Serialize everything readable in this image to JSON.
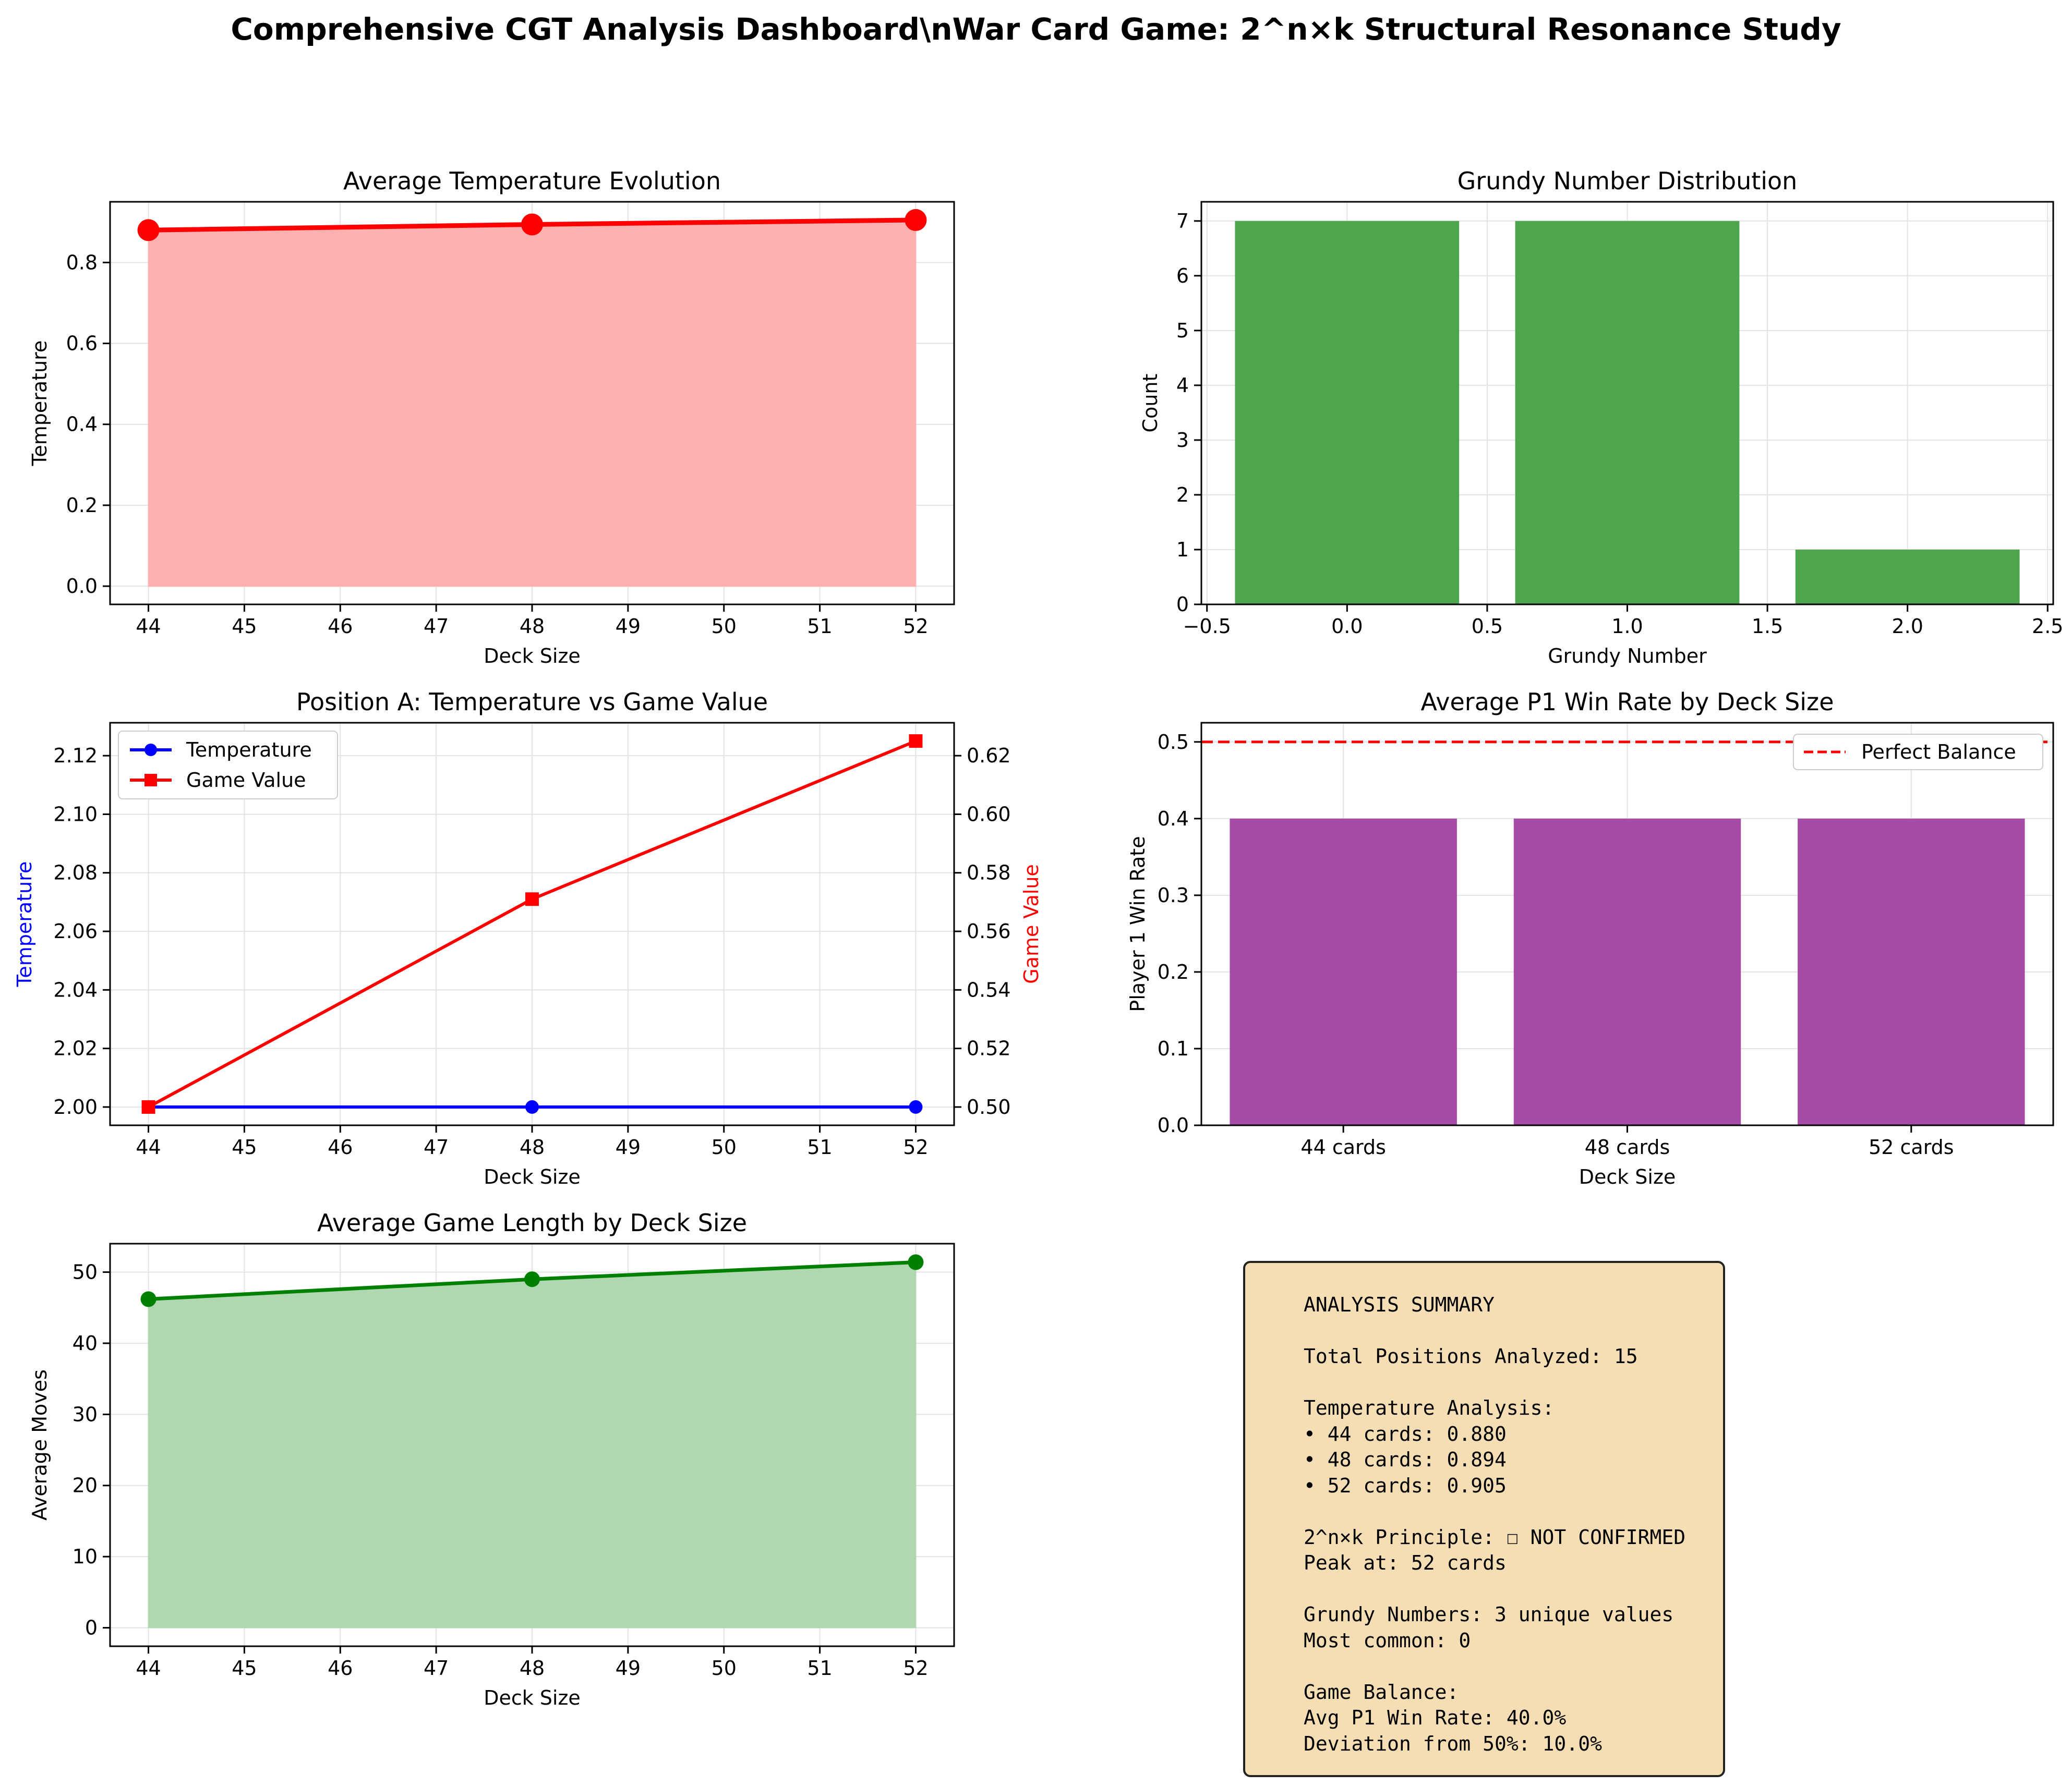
{
  "figure": {
    "title": "Comprehensive CGT Analysis Dashboard\\nWar Card Game: 2^n×k Structural Resonance Study"
  },
  "colors": {
    "red": "#ff0000",
    "red_fill": "#ffb0b0",
    "green_bar": "#4da64d",
    "purple_bar": "#a64ca6",
    "green_line": "#008000",
    "green_fill": "#b0d8b0",
    "blue": "#0000ff",
    "box_fill": "#f5deb3"
  },
  "chart_data": [
    {
      "id": "temp_evolution",
      "type": "area",
      "title": "Average Temperature Evolution",
      "xlabel": "Deck Size",
      "ylabel": "Temperature",
      "x": [
        44,
        48,
        52
      ],
      "values": [
        0.88,
        0.894,
        0.905
      ],
      "xlim": [
        43.6,
        52.4
      ],
      "ylim": [
        -0.045,
        0.95
      ],
      "xticks": [
        "44",
        "45",
        "46",
        "47",
        "48",
        "49",
        "50",
        "51",
        "52"
      ],
      "yticks": [
        "0.0",
        "0.2",
        "0.4",
        "0.6",
        "0.8"
      ],
      "grid": true
    },
    {
      "id": "grundy",
      "type": "bar",
      "title": "Grundy Number Distribution",
      "xlabel": "Grundy Number",
      "ylabel": "Count",
      "x": [
        0,
        1,
        2
      ],
      "values": [
        7,
        7,
        1
      ],
      "bar_width": 0.8,
      "xlim": [
        -0.52,
        2.52
      ],
      "ylim": [
        0,
        7.35
      ],
      "xticks": [
        "−0.5",
        "0.0",
        "0.5",
        "1.0",
        "1.5",
        "2.0",
        "2.5"
      ],
      "yticks": [
        "0",
        "1",
        "2",
        "3",
        "4",
        "5",
        "6",
        "7"
      ],
      "grid": true
    },
    {
      "id": "posA",
      "type": "line",
      "title": "Position A: Temperature vs Game Value",
      "xlabel": "Deck Size",
      "ylabel": "Temperature",
      "ylabel_right": "Game Value",
      "x": [
        44,
        48,
        52
      ],
      "series": [
        {
          "name": "Temperature",
          "axis": "left",
          "values": [
            2.0,
            2.0,
            2.0
          ]
        },
        {
          "name": "Game Value",
          "axis": "right",
          "values": [
            0.5,
            0.571,
            0.625
          ]
        }
      ],
      "xlim": [
        43.6,
        52.4
      ],
      "ylim": [
        1.99375,
        2.13125
      ],
      "ylim_right": [
        0.49375,
        0.63125
      ],
      "xticks": [
        "44",
        "45",
        "46",
        "47",
        "48",
        "49",
        "50",
        "51",
        "52"
      ],
      "yticks": [
        "2.00",
        "2.02",
        "2.04",
        "2.06",
        "2.08",
        "2.10",
        "2.12"
      ],
      "yticks_right": [
        "0.50",
        "0.52",
        "0.54",
        "0.56",
        "0.58",
        "0.60",
        "0.62"
      ],
      "legend": "upper-left",
      "grid": true
    },
    {
      "id": "winrate",
      "type": "bar",
      "title": "Average P1 Win Rate by Deck Size",
      "xlabel": "Deck Size",
      "ylabel": "Player 1 Win Rate",
      "categories": [
        "44 cards",
        "48 cards",
        "52 cards"
      ],
      "values": [
        0.4,
        0.4,
        0.4
      ],
      "reference_line": {
        "name": "Perfect Balance",
        "value": 0.5
      },
      "ylim": [
        0,
        0.525
      ],
      "yticks": [
        "0.0",
        "0.1",
        "0.2",
        "0.3",
        "0.4",
        "0.5"
      ],
      "legend": "upper-right",
      "grid": true
    },
    {
      "id": "length",
      "type": "area",
      "title": "Average Game Length by Deck Size",
      "xlabel": "Deck Size",
      "ylabel": "Average Moves",
      "x": [
        44,
        48,
        52
      ],
      "values": [
        46.2,
        49.0,
        51.4
      ],
      "xlim": [
        43.6,
        52.4
      ],
      "ylim": [
        -2.6,
        54.0
      ],
      "xticks": [
        "44",
        "45",
        "46",
        "47",
        "48",
        "49",
        "50",
        "51",
        "52"
      ],
      "yticks": [
        "0",
        "10",
        "20",
        "30",
        "40",
        "50"
      ],
      "grid": true
    }
  ],
  "summary": {
    "text": "ANALYSIS SUMMARY\n\nTotal Positions Analyzed: 15\n\nTemperature Analysis:\n• 44 cards: 0.880\n• 48 cards: 0.894\n• 52 cards: 0.905\n\n2^n×k Principle: ☐ NOT CONFIRMED\nPeak at: 52 cards\n\nGrundy Numbers: 3 unique values\nMost common: 0\n\nGame Balance:\nAvg P1 Win Rate: 40.0%\nDeviation from 50%: 10.0%"
  }
}
